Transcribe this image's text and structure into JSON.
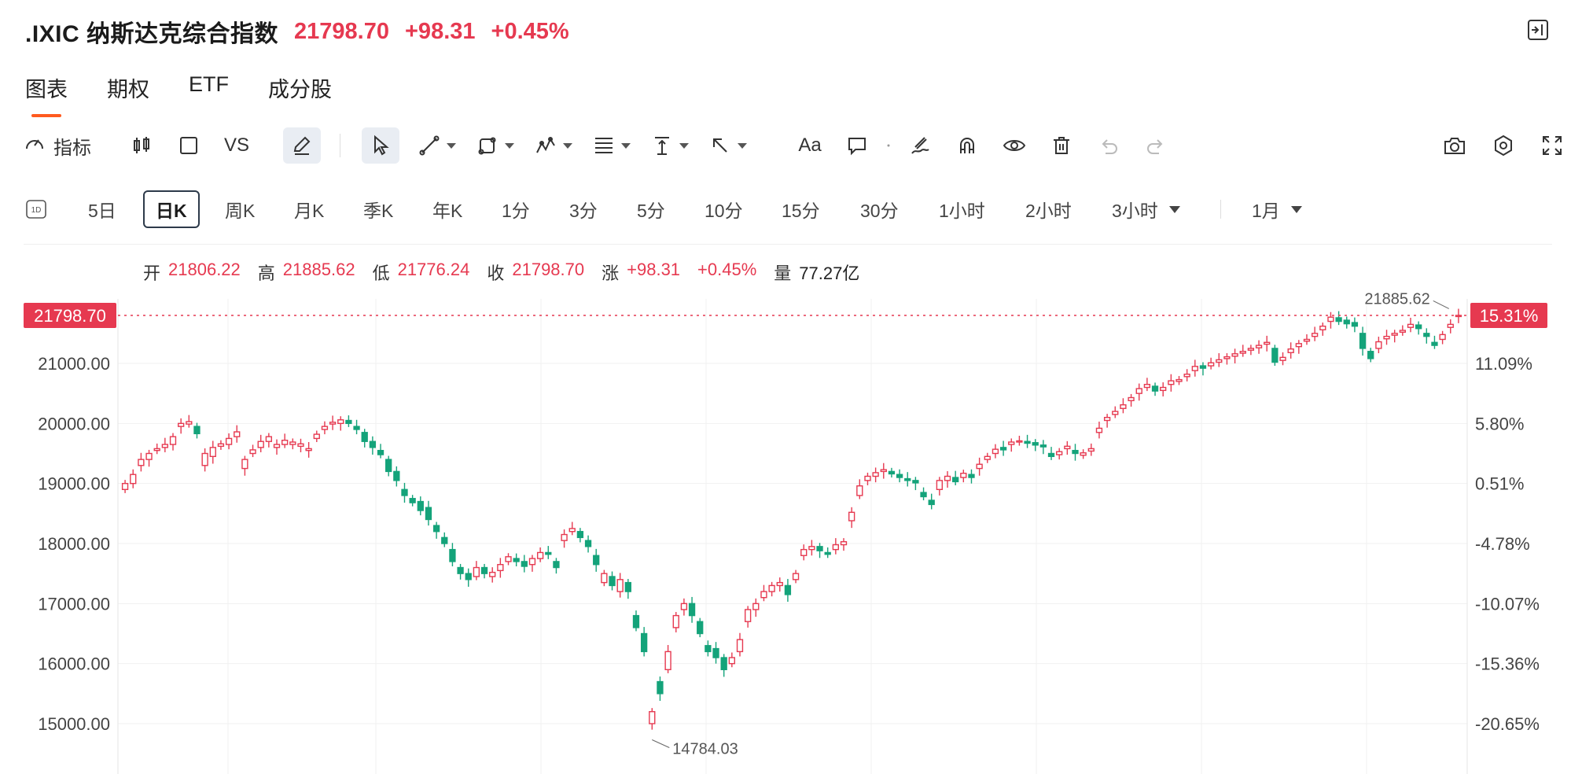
{
  "header": {
    "symbol": ".IXIC",
    "name": "纳斯达克综合指数",
    "price": "21798.70",
    "change": "+98.31",
    "change_pct": "+0.45%"
  },
  "tabs": [
    {
      "label": "图表",
      "active": true
    },
    {
      "label": "期权",
      "active": false
    },
    {
      "label": "ETF",
      "active": false
    },
    {
      "label": "成分股",
      "active": false
    }
  ],
  "toolbar": {
    "indicator_label": "指标",
    "vs_label": "VS",
    "text_label": "Aa",
    "icons": [
      "speedometer-icon",
      "candle-icon",
      "square-icon",
      "pencil-icon",
      "cursor-icon",
      "line-tool-icon",
      "shape-tool-icon",
      "pattern-tool-icon",
      "fib-tool-icon",
      "measure-tool-icon",
      "arrow-tool-icon",
      "text-tool-icon",
      "comment-icon",
      "brush-icon",
      "magnet-icon",
      "eye-icon",
      "trash-icon",
      "undo-icon",
      "redo-icon",
      "camera-icon",
      "settings-icon",
      "fullscreen-icon"
    ]
  },
  "periods": {
    "items": [
      "5日",
      "日K",
      "周K",
      "月K",
      "季K",
      "年K",
      "1分",
      "3分",
      "5分",
      "10分",
      "15分",
      "30分",
      "1小时",
      "2小时",
      "3小时"
    ],
    "selected": "日K",
    "range_label": "1月"
  },
  "ohlc": {
    "open_label": "开",
    "open": "21806.22",
    "high_label": "高",
    "high": "21885.62",
    "low_label": "低",
    "low": "21776.24",
    "close_label": "收",
    "close": "21798.70",
    "change_label": "涨",
    "change": "+98.31",
    "change_pct": "+0.45%",
    "volume_label": "量",
    "volume": "77.27亿"
  },
  "colors": {
    "up": "#e63950",
    "down": "#14a37a",
    "accent": "#ff5a1f"
  },
  "chart_data": {
    "type": "candlestick",
    "y_left_ticks": [
      "15000.00",
      "16000.00",
      "17000.00",
      "18000.00",
      "19000.00",
      "20000.00",
      "21000.00"
    ],
    "y_right_ticks": [
      "-20.65%",
      "-15.36%",
      "-10.07%",
      "-4.78%",
      "0.51%",
      "5.80%",
      "11.09%"
    ],
    "ylim": [
      14400,
      22200
    ],
    "last_price_label": "21798.70",
    "last_price": 21798.7,
    "last_pct_label": "15.31%",
    "high_annotation": "21885.62",
    "high_value": 21885.62,
    "low_annotation": "14784.03",
    "low_value": 14784.03,
    "series_close": [
      19000,
      19150,
      19400,
      19500,
      19580,
      19650,
      19780,
      20000,
      20030,
      19830,
      19500,
      19600,
      19660,
      19750,
      19860,
      19400,
      19560,
      19700,
      19780,
      19650,
      19720,
      19690,
      19660,
      19580,
      19820,
      19950,
      20020,
      20060,
      20000,
      19900,
      19700,
      19600,
      19480,
      19200,
      19050,
      18800,
      18680,
      18550,
      18400,
      18200,
      18000,
      17700,
      17500,
      17400,
      17600,
      17500,
      17520,
      17650,
      17780,
      17700,
      17620,
      17750,
      17850,
      17820,
      17600,
      18150,
      18250,
      18100,
      17950,
      17650,
      17500,
      17300,
      17400,
      17200,
      16600,
      16200,
      15200,
      15500,
      16200,
      16800,
      17000,
      16800,
      16500,
      16200,
      16100,
      15900,
      16100,
      16400,
      16900,
      17000,
      17200,
      17300,
      17350,
      17150,
      17500,
      17900,
      17950,
      17880,
      17820,
      17980,
      18030,
      18520,
      18960,
      19120,
      19180,
      19230,
      19160,
      19100,
      19050,
      19010,
      18780,
      18650,
      19050,
      19120,
      19030,
      19170,
      19100,
      19320,
      19450,
      19570,
      19560,
      19690,
      19710,
      19670,
      19640,
      19610,
      19450,
      19530,
      19620,
      19500,
      19510,
      19580,
      19920,
      20100,
      20200,
      20310,
      20430,
      20580,
      20650,
      20540,
      20600,
      20710,
      20730,
      20820,
      20950,
      20920,
      21010,
      21060,
      21110,
      21160,
      21200,
      21250,
      21300,
      21350,
      21020,
      21100,
      21240,
      21330,
      21400,
      21500,
      21620,
      21770,
      21700,
      21660,
      21620,
      21250,
      21080,
      21360,
      21450,
      21500,
      21550,
      21650,
      21580,
      21450,
      21300,
      21480,
      21650,
      21800
    ],
    "series_open": [
      18900,
      19000,
      19300,
      19400,
      19550,
      19600,
      19650,
      19950,
      19990,
      19950,
      19300,
      19450,
      19620,
      19650,
      19780,
      19250,
      19500,
      19600,
      19700,
      19600,
      19650,
      19650,
      19620,
      19550,
      19750,
      19900,
      19990,
      20000,
      20050,
      19950,
      19850,
      19700,
      19550,
      19400,
      19200,
      18900,
      18750,
      18700,
      18600,
      18300,
      18100,
      17900,
      17600,
      17500,
      17450,
      17600,
      17450,
      17550,
      17700,
      17750,
      17700,
      17650,
      17750,
      17850,
      17700,
      18050,
      18200,
      18200,
      18050,
      17800,
      17350,
      17450,
      17200,
      17350,
      16800,
      16500,
      15000,
      15700,
      15900,
      16600,
      16900,
      17000,
      16700,
      16300,
      16250,
      16100,
      16000,
      16200,
      16700,
      16900,
      17100,
      17200,
      17300,
      17300,
      17400,
      17800,
      17900,
      17950,
      17850,
      17900,
      17980,
      18380,
      18800,
      19050,
      19120,
      19200,
      19200,
      19150,
      19080,
      19050,
      18850,
      18720,
      18900,
      19050,
      19100,
      19100,
      19150,
      19250,
      19400,
      19500,
      19600,
      19650,
      19690,
      19700,
      19680,
      19640,
      19500,
      19480,
      19580,
      19550,
      19470,
      19540,
      19850,
      20050,
      20150,
      20250,
      20380,
      20500,
      20600,
      20620,
      20550,
      20650,
      20700,
      20780,
      20880,
      20960,
      20960,
      21020,
      21080,
      21120,
      21170,
      21220,
      21260,
      21320,
      21250,
      21050,
      21180,
      21280,
      21370,
      21450,
      21560,
      21700,
      21760,
      21720,
      21680,
      21500,
      21200,
      21250,
      21410,
      21470,
      21520,
      21600,
      21640,
      21500,
      21350,
      21400,
      21600,
      21790
    ]
  }
}
